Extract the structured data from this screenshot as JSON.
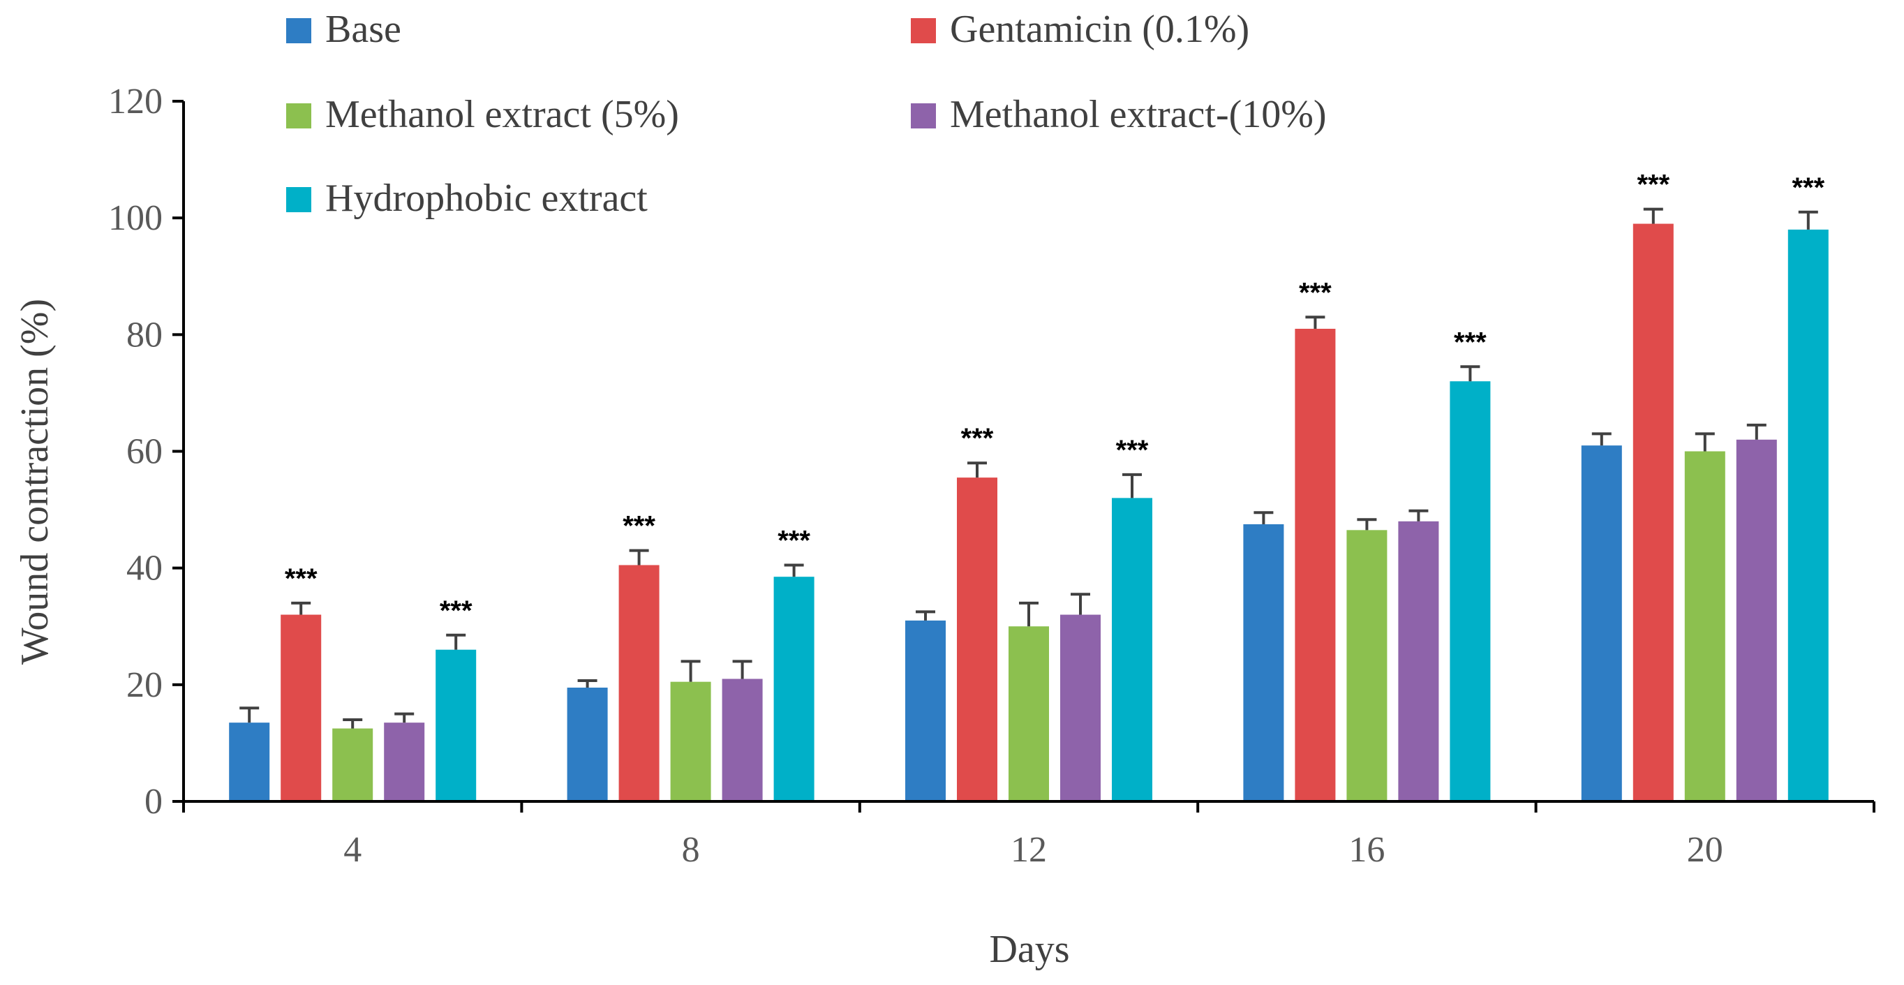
{
  "chart_data": {
    "type": "bar",
    "title": "",
    "xlabel": "Days",
    "ylabel": "Wound contraction (%)",
    "categories": [
      "4",
      "8",
      "12",
      "16",
      "20"
    ],
    "ylim": [
      0,
      120
    ],
    "yticks": [
      "0",
      "20",
      "40",
      "60",
      "80",
      "100",
      "120"
    ],
    "grid": false,
    "legend_position": "top",
    "series": [
      {
        "name": "Base",
        "color": "#2E7DC4",
        "values": [
          13.5,
          19.5,
          31,
          47.5,
          61
        ],
        "errors": [
          2.5,
          1.2,
          1.5,
          2,
          2
        ]
      },
      {
        "name": "Gentamicin (0.1%)",
        "color": "#E04B4B",
        "values": [
          32,
          40.5,
          55.5,
          81,
          99
        ],
        "errors": [
          2,
          2.5,
          2.5,
          2,
          2.5
        ],
        "annotations": [
          "***",
          "***",
          "***",
          "***",
          "***"
        ]
      },
      {
        "name": "Methanol extract (5%)",
        "color": "#8CC04F",
        "values": [
          12.5,
          20.5,
          30,
          46.5,
          60
        ],
        "errors": [
          1.5,
          3.5,
          4,
          1.8,
          3
        ]
      },
      {
        "name": "Methanol extract-(10%)",
        "color": "#8E63AA",
        "values": [
          13.5,
          21,
          32,
          48,
          62
        ],
        "errors": [
          1.5,
          3,
          3.5,
          1.8,
          2.5
        ]
      },
      {
        "name": "Hydrophobic extract",
        "color": "#00B0C8",
        "values": [
          26,
          38.5,
          52,
          72,
          98
        ],
        "errors": [
          2.5,
          2,
          4,
          2.5,
          3
        ],
        "annotations": [
          "***",
          "***",
          "***",
          "***",
          "***"
        ]
      }
    ]
  }
}
